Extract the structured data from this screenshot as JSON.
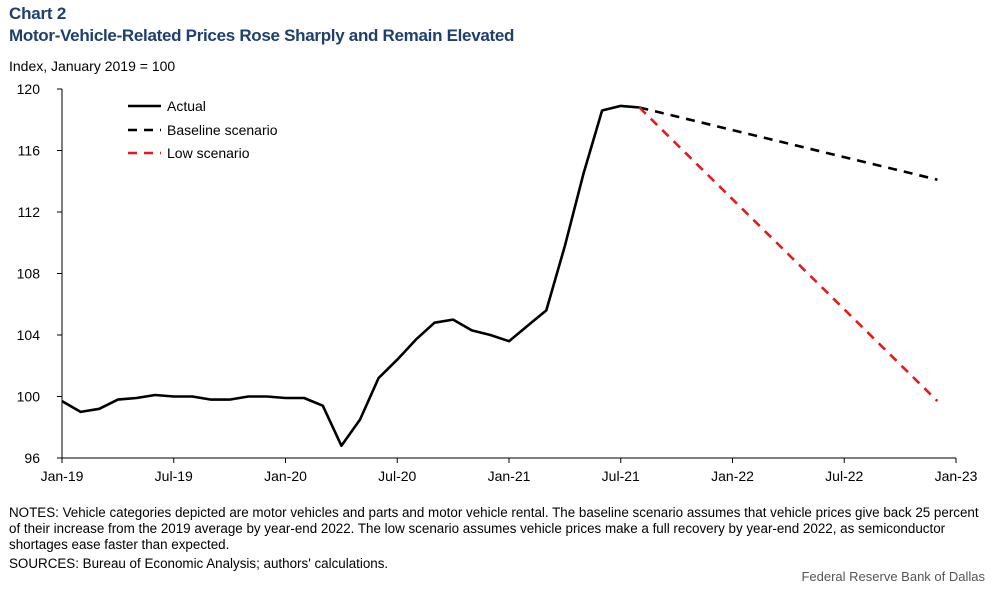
{
  "header": {
    "chart_label": "Chart 2",
    "title": "Motor-Vehicle-Related Prices Rose Sharply and Remain Elevated",
    "unit_label": "Index,  January 2019 = 100"
  },
  "footer": {
    "notes": "NOTES: Vehicle categories depicted are motor vehicles and parts and motor vehicle rental. The baseline scenario assumes that vehicle prices give back 25 percent of their increase from the 2019 average by year-end 2022. The low scenario assumes vehicle prices make a full recovery by year-end 2022, as semiconductor shortages ease faster than expected.",
    "sources": "SOURCES: Bureau of Economic Analysis; authors' calculations.",
    "credit": "Federal Reserve Bank of Dallas"
  },
  "colors": {
    "actual": "#000000",
    "baseline": "#000000",
    "low": "#e8191c",
    "title": "#1f3f6e"
  },
  "chart_data": {
    "type": "line",
    "title": "Motor-Vehicle-Related Prices Rose Sharply and Remain Elevated",
    "xlabel": "",
    "ylabel": "Index, January 2019 = 100",
    "ylim": [
      96,
      120
    ],
    "xlim": [
      0,
      48
    ],
    "yticks": [
      96,
      100,
      104,
      108,
      112,
      116,
      120
    ],
    "x_ticks": [
      {
        "pos": 0,
        "label": "Jan-19"
      },
      {
        "pos": 6,
        "label": "Jul-19"
      },
      {
        "pos": 12,
        "label": "Jan-20"
      },
      {
        "pos": 18,
        "label": "Jul-20"
      },
      {
        "pos": 24,
        "label": "Jan-21"
      },
      {
        "pos": 30,
        "label": "Jul-21"
      },
      {
        "pos": 36,
        "label": "Jan-22"
      },
      {
        "pos": 42,
        "label": "Jul-22"
      },
      {
        "pos": 48,
        "label": "Jan-23"
      }
    ],
    "grid": false,
    "legend_position": "top-left",
    "series": [
      {
        "name": "Actual",
        "style": "solid",
        "x": [
          0,
          1,
          2,
          3,
          4,
          5,
          6,
          7,
          8,
          9,
          10,
          11,
          12,
          13,
          14,
          15,
          16,
          17,
          18,
          19,
          20,
          21,
          22,
          23,
          24,
          25,
          26,
          27,
          28,
          29,
          30,
          31
        ],
        "values": [
          99.7,
          99.0,
          99.2,
          99.8,
          99.9,
          100.1,
          100.0,
          100.0,
          99.8,
          99.8,
          100.0,
          100.0,
          99.9,
          99.9,
          99.4,
          96.8,
          98.5,
          101.2,
          102.4,
          103.7,
          104.8,
          105.0,
          104.3,
          104.0,
          103.6,
          104.6,
          105.6,
          109.8,
          114.5,
          118.6,
          118.9,
          118.8
        ]
      },
      {
        "name": "Baseline scenario",
        "style": "dashed",
        "x": [
          31,
          47
        ],
        "values": [
          118.8,
          114.1
        ]
      },
      {
        "name": "Low scenario",
        "style": "dashed",
        "x": [
          31,
          47
        ],
        "values": [
          118.8,
          99.7
        ]
      }
    ]
  }
}
